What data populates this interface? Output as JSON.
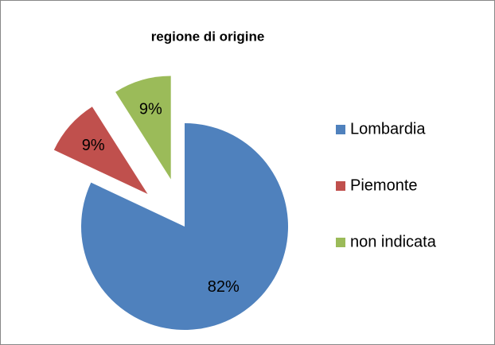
{
  "chart_data": {
    "type": "pie",
    "title": "regione di origine",
    "categories": [
      "Lombardia",
      "Piemonte",
      "non indicata"
    ],
    "values": [
      82,
      9,
      9
    ],
    "value_labels": [
      "82%",
      "9%",
      "9%"
    ],
    "colors": [
      "#4f81bd",
      "#c0504d",
      "#9bbb59"
    ],
    "explode": [
      false,
      true,
      true
    ],
    "legend": "right"
  }
}
